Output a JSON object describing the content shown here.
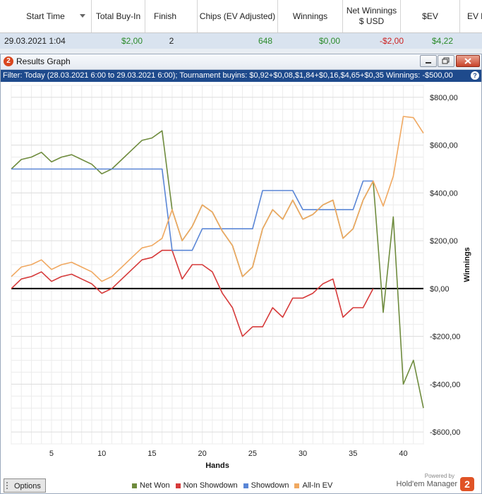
{
  "table": {
    "columns": [
      {
        "label": "Start Time"
      },
      {
        "label": "Total Buy-In"
      },
      {
        "label": "Finish"
      },
      {
        "label": "Chips (EV Adjusted)"
      },
      {
        "label": "Winnings"
      },
      {
        "label": "Net Winnings $ USD"
      },
      {
        "label": "$EV"
      },
      {
        "label": "EV b"
      }
    ],
    "row": {
      "start_time": "29.03.2021 1:04",
      "total_buyin": "$2,00",
      "finish": "2",
      "chips": "648",
      "winnings": "$0,00",
      "net_winnings": "-$2,00",
      "ev": "$4,22"
    },
    "colors": {
      "green": "#2a8a2a",
      "red": "#cc2222"
    }
  },
  "window": {
    "title": "Results Graph",
    "icon_label": "2",
    "filter_text": "Filter: Today (28.03.2021 6:00 to 29.03.2021 6:00); Tournament buyins: $0,92+$0,08,$1,84+$0,16,$4,65+$0,35 Winnings: -$500,00",
    "filter_info": "?"
  },
  "footer": {
    "options_label": "Options",
    "powered_by": "Powered by",
    "brand": "Hold'em Manager",
    "brand_logo": "2"
  },
  "chart_data": {
    "type": "line",
    "xlabel": "Hands",
    "ylabel": "Winnings",
    "xlim": [
      1,
      42
    ],
    "ylim": [
      -650,
      850
    ],
    "xticks": [
      5,
      10,
      15,
      20,
      25,
      30,
      35,
      40
    ],
    "yticks": [
      {
        "value": 800,
        "label": "$800,00"
      },
      {
        "value": 600,
        "label": "$600,00"
      },
      {
        "value": 400,
        "label": "$400,00"
      },
      {
        "value": 200,
        "label": "$200,00"
      },
      {
        "value": 0,
        "label": "$0,00"
      },
      {
        "value": -200,
        "label": "-$200,00"
      },
      {
        "value": -400,
        "label": "-$400,00"
      },
      {
        "value": -600,
        "label": "-$600,00"
      }
    ],
    "grid": true,
    "legend_position": "bottom",
    "series": [
      {
        "name": "Net Won",
        "color": "#6e8b3d",
        "x": [
          1,
          2,
          3,
          4,
          5,
          6,
          7,
          8,
          9,
          10,
          11,
          12,
          13,
          14,
          15,
          16,
          17,
          18,
          19,
          20,
          21,
          22,
          23,
          24,
          25,
          26,
          27,
          28,
          29,
          30,
          31,
          32,
          33,
          34,
          35,
          36,
          37,
          38,
          39,
          40,
          41,
          42
        ],
        "y": [
          500,
          540,
          550,
          570,
          530,
          550,
          560,
          540,
          520,
          480,
          500,
          540,
          580,
          620,
          630,
          660,
          330,
          200,
          260,
          350,
          320,
          240,
          180,
          50,
          90,
          250,
          330,
          290,
          370,
          290,
          310,
          350,
          370,
          210,
          250,
          370,
          450,
          -100,
          300,
          -400,
          -300,
          -500
        ]
      },
      {
        "name": "Non Showdown",
        "color": "#d63a3a",
        "x": [
          1,
          2,
          3,
          4,
          5,
          6,
          7,
          8,
          9,
          10,
          11,
          12,
          13,
          14,
          15,
          16,
          17,
          18,
          19,
          20,
          21,
          22,
          23,
          24,
          25,
          26,
          27,
          28,
          29,
          30,
          31,
          32,
          33,
          34,
          35,
          36,
          37
        ],
        "y": [
          0,
          40,
          50,
          70,
          30,
          50,
          60,
          40,
          20,
          -20,
          0,
          40,
          80,
          120,
          130,
          160,
          160,
          40,
          100,
          100,
          70,
          -20,
          -80,
          -200,
          -160,
          -160,
          -80,
          -120,
          -40,
          -40,
          -20,
          20,
          40,
          -120,
          -80,
          -80,
          0
        ]
      },
      {
        "name": "Showdown",
        "color": "#5a86d6",
        "x": [
          1,
          2,
          3,
          4,
          5,
          6,
          7,
          8,
          9,
          10,
          11,
          12,
          13,
          14,
          15,
          16,
          17,
          18,
          19,
          20,
          21,
          22,
          23,
          24,
          25,
          26,
          27,
          28,
          29,
          30,
          31,
          32,
          33,
          34,
          35,
          36,
          37
        ],
        "y": [
          500,
          500,
          500,
          500,
          500,
          500,
          500,
          500,
          500,
          500,
          500,
          500,
          500,
          500,
          500,
          500,
          160,
          160,
          160,
          250,
          250,
          250,
          250,
          250,
          250,
          410,
          410,
          410,
          410,
          330,
          330,
          330,
          330,
          330,
          330,
          450,
          450
        ]
      },
      {
        "name": "All-In EV",
        "color": "#f0a860",
        "x": [
          1,
          2,
          3,
          4,
          5,
          6,
          7,
          8,
          9,
          10,
          11,
          12,
          13,
          14,
          15,
          16,
          17,
          18,
          19,
          20,
          21,
          22,
          23,
          24,
          25,
          26,
          27,
          28,
          29,
          30,
          31,
          32,
          33,
          34,
          35,
          36,
          37,
          38,
          39,
          40,
          41,
          42
        ],
        "y": [
          50,
          90,
          100,
          120,
          80,
          100,
          110,
          90,
          70,
          30,
          50,
          90,
          130,
          170,
          180,
          210,
          330,
          200,
          260,
          350,
          320,
          240,
          180,
          50,
          90,
          250,
          330,
          290,
          370,
          290,
          310,
          350,
          370,
          210,
          250,
          370,
          450,
          345,
          470,
          720,
          715,
          650
        ]
      }
    ]
  }
}
